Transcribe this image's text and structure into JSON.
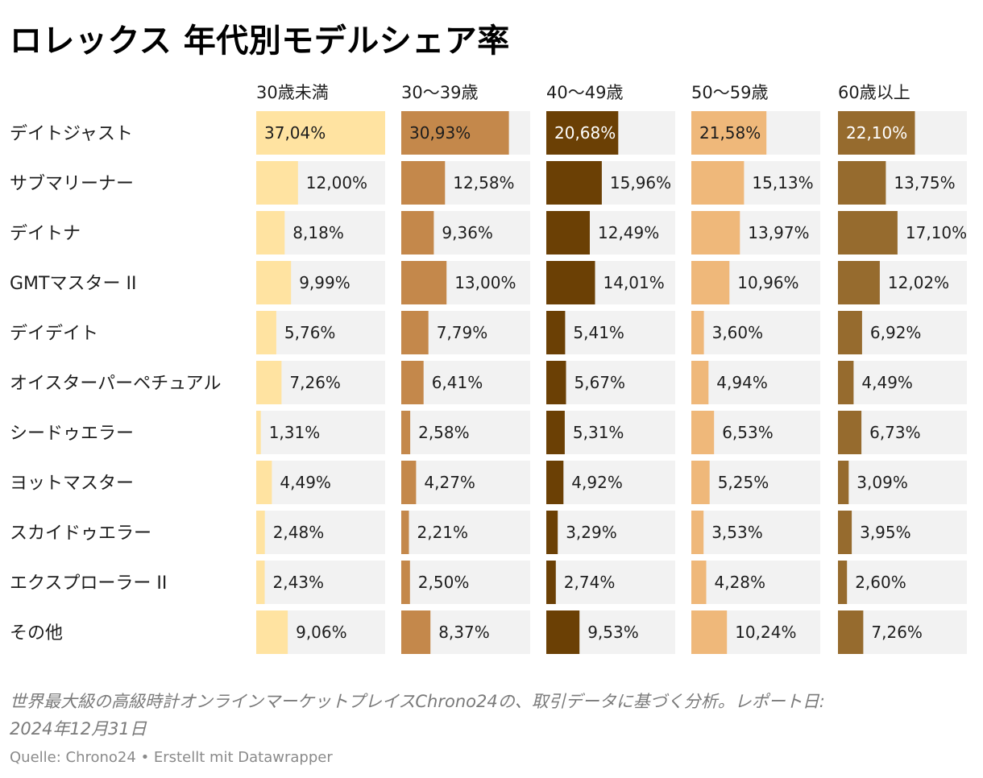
{
  "title": "ロレックス 年代別モデルシェア率",
  "note_line1": "世界最大級の高級時計オンラインマーケットプレイスChrono24の、取引データに基づく分析。レポート日:",
  "note_line2": "2024年12月31日",
  "source": "Quelle: Chrono24",
  "credit": "Erstellt mit Datawrapper",
  "separator": " • ",
  "chart_data": {
    "type": "bar",
    "orientation": "horizontal",
    "layout": "small-multiples",
    "max_value": 37.04,
    "decimal_separator": ",",
    "unit": "%",
    "categories": [
      "デイトジャスト",
      "サブマリーナー",
      "デイトナ",
      "GMTマスター II",
      "デイデイト",
      "オイスターパーペチュアル",
      "シードゥエラー",
      "ヨットマスター",
      "スカイドゥエラー",
      "エクスプローラー II",
      "その他"
    ],
    "series": [
      {
        "name": "30歳未満",
        "color": "#ffe3a1",
        "values": [
          37.04,
          12.0,
          8.18,
          9.99,
          5.76,
          7.26,
          1.31,
          4.49,
          2.48,
          2.43,
          9.06
        ]
      },
      {
        "name": "30～39歳",
        "color": "#c4884b",
        "values": [
          30.93,
          12.58,
          9.36,
          13.0,
          7.79,
          6.41,
          2.58,
          4.27,
          2.21,
          2.5,
          8.37
        ]
      },
      {
        "name": "40～49歳",
        "color": "#6b4005",
        "values": [
          20.68,
          15.96,
          12.49,
          14.01,
          5.41,
          5.67,
          5.31,
          4.92,
          3.29,
          2.74,
          9.53
        ]
      },
      {
        "name": "50～59歳",
        "color": "#efb87a",
        "values": [
          21.58,
          15.13,
          13.97,
          10.96,
          3.6,
          4.94,
          6.53,
          5.25,
          3.53,
          4.28,
          10.24
        ]
      },
      {
        "name": "60歳以上",
        "color": "#966b2e",
        "values": [
          22.1,
          13.75,
          17.1,
          12.02,
          6.92,
          4.49,
          6.73,
          3.09,
          3.95,
          2.6,
          7.26
        ]
      }
    ]
  }
}
